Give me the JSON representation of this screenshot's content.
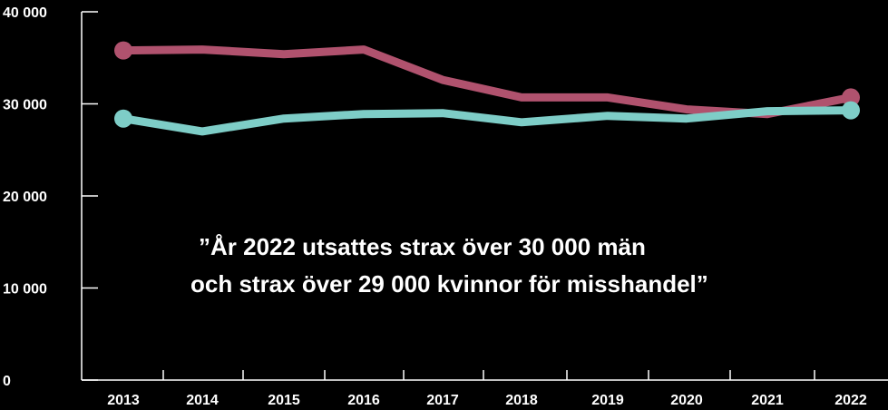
{
  "chart_data": {
    "type": "line",
    "title": "",
    "xlabel": "",
    "ylabel": "",
    "categories": [
      "2013",
      "2014",
      "2015",
      "2016",
      "2017",
      "2018",
      "2019",
      "2020",
      "2021",
      "2022"
    ],
    "y_ticks": [
      0,
      10000,
      20000,
      30000,
      40000
    ],
    "y_tick_labels": [
      "0",
      "10 000",
      "20 000",
      "30 000",
      "40 000"
    ],
    "ylim": [
      0,
      40000
    ],
    "grid": false,
    "legend": "none",
    "series": [
      {
        "color": "#b0526e",
        "values": [
          35800,
          35900,
          35400,
          35900,
          32600,
          30700,
          30700,
          29400,
          28900,
          30700
        ]
      },
      {
        "color": "#7ecdc7",
        "values": [
          28400,
          27000,
          28400,
          28900,
          29000,
          28000,
          28700,
          28400,
          29200,
          29300
        ]
      }
    ],
    "annotation": {
      "lines": [
        "”År 2022 utsattes strax över 30 000 män",
        "och strax över 29 000 kvinnor för misshandel”"
      ]
    }
  }
}
